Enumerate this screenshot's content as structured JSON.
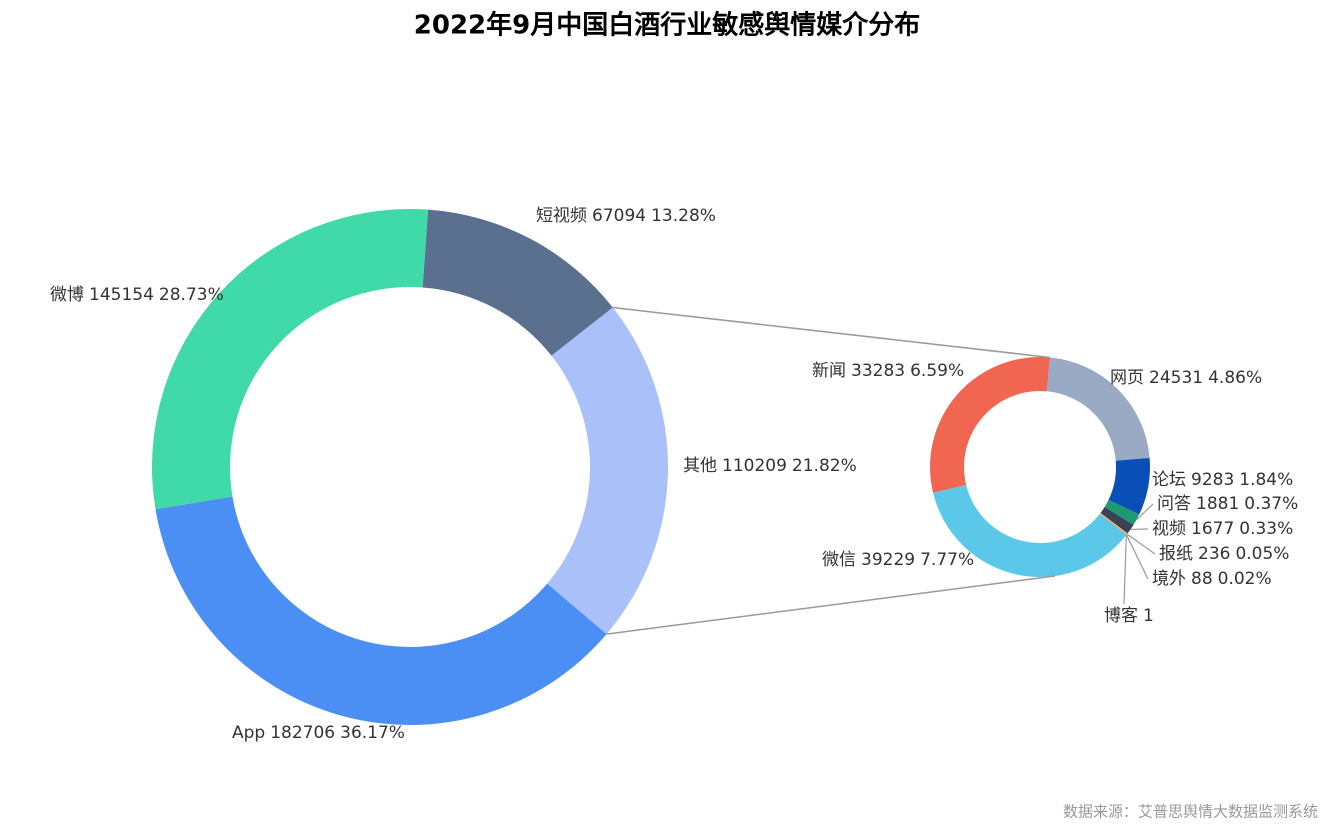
{
  "chart_data": {
    "type": "donut",
    "title": "2022年9月中国白酒行业敏感舆情媒介分布",
    "source": "数据来源：艾普思舆情大数据监测系统",
    "categories": [
      "短视频",
      "其他",
      "App",
      "微博"
    ],
    "values": [
      67094,
      110209,
      182706,
      145154
    ],
    "percent_labels": [
      "13.28%",
      "21.82%",
      "36.17%",
      "28.73%"
    ],
    "colors": [
      "#5b6f8e",
      "#aac0f8",
      "#4b8ff5",
      "#40d9a8"
    ],
    "detail": {
      "categories": [
        "网页",
        "论坛",
        "问答",
        "视频",
        "报纸",
        "境外",
        "博客",
        "微信",
        "新闻"
      ],
      "values": [
        24531,
        9283,
        1881,
        1677,
        236,
        88,
        1,
        39229,
        33283
      ],
      "percent_labels": [
        "4.86%",
        "1.84%",
        "0.37%",
        "0.33%",
        "0.05%",
        "0.02%",
        null,
        "7.77%",
        "6.59%"
      ],
      "colors": [
        "#9aaac4",
        "#0a4fb8",
        "#1f9a70",
        "#3a4255",
        "#f0c080",
        "#d07050",
        "#888888",
        "#5bc8ea",
        "#f06650"
      ]
    }
  }
}
